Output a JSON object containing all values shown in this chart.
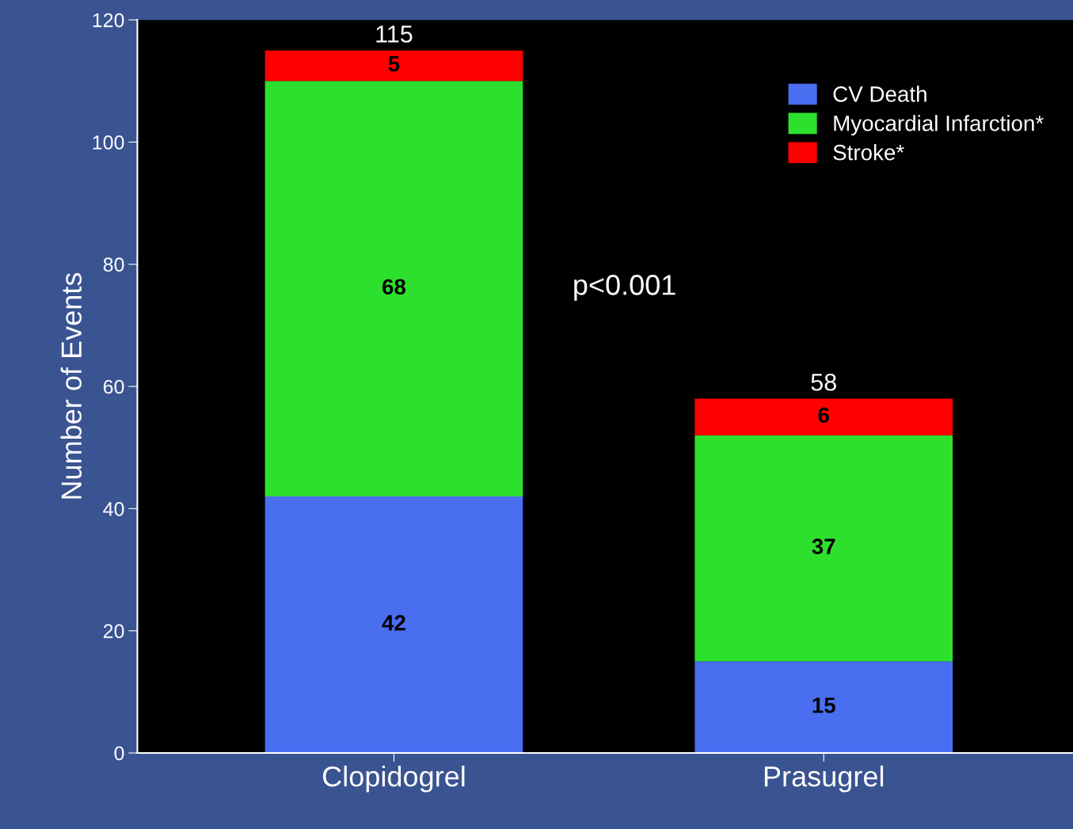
{
  "chart_data": {
    "type": "bar",
    "stacked": true,
    "ylabel": "Number of Events",
    "categories": [
      "Clopidogrel",
      "Prasugrel"
    ],
    "series": [
      {
        "name": "CV Death",
        "color": "#4a6ef0",
        "values": [
          42,
          15
        ]
      },
      {
        "name": "Myocardial Infarction*",
        "color": "#2ee02e",
        "values": [
          68,
          37
        ]
      },
      {
        "name": "Stroke*",
        "color": "#ff0000",
        "values": [
          5,
          6
        ]
      }
    ],
    "data_labels": true,
    "totals": [
      "115",
      "58"
    ],
    "ylim": [
      0,
      120
    ],
    "yticks": [
      0,
      20,
      40,
      60,
      80,
      100,
      120
    ],
    "grid": false,
    "legend": "top right",
    "annotations": [
      "p<0.001"
    ]
  }
}
